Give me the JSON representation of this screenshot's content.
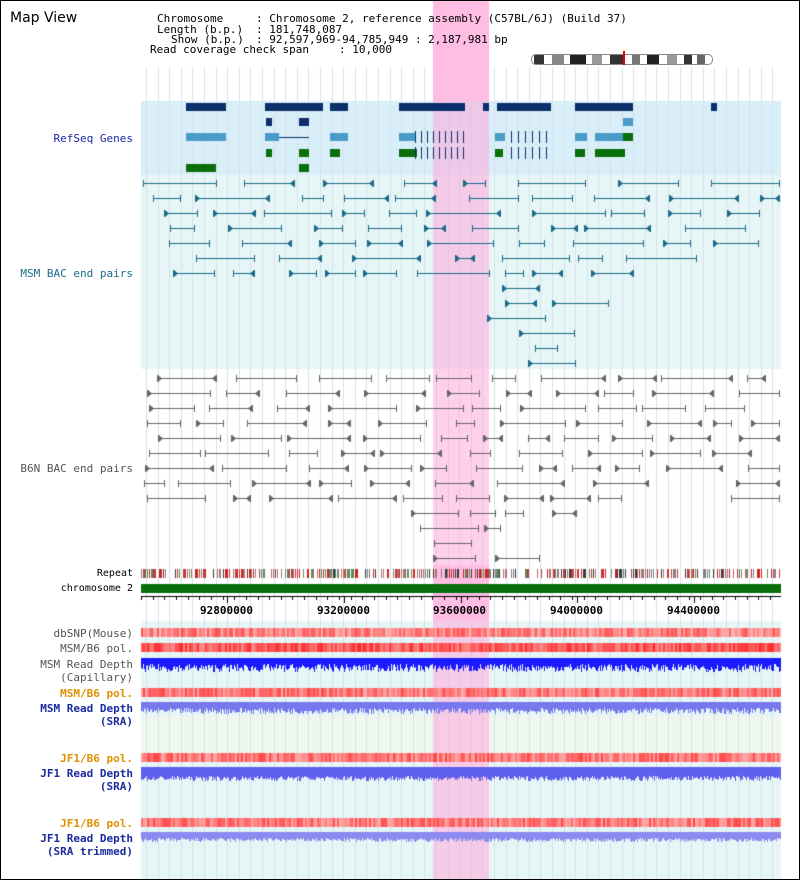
{
  "app_title": "Map View",
  "header": {
    "chromosome_label": "Chromosome",
    "chromosome_value": ": Chromosome 2, reference assembly (C57BL/6J) (Build 37)",
    "length_label": "Length (b.p.)",
    "length_value": ": 181,748,087",
    "show_label": "Show (b.p.)",
    "show_value": ": 92,597,969-94,785,949 : 2,187,981 bp",
    "coverage_label": "Read coverage check span",
    "coverage_value": ": 10,000"
  },
  "tracks": {
    "refseq": "RefSeq Genes",
    "msm_bac": "MSM BAC end pairs",
    "b6n_bac": "B6N BAC end pairs",
    "repeat": "Repeat",
    "chromosome": "chromosome 2",
    "dbsnp": "dbSNP(Mouse)",
    "msm_b6_pol_1": "MSM/B6 pol.",
    "msm_read_depth_cap_1": "MSM Read Depth",
    "msm_read_depth_cap_2": "(Capillary)",
    "msm_b6_pol_2": "MSM/B6 pol.",
    "msm_read_depth_sra_1": "MSM Read Depth",
    "msm_read_depth_sra_2": "(SRA)",
    "jf1_b6_pol_1": "JF1/B6 pol.",
    "jf1_read_depth_sra_1": "JF1 Read Depth",
    "jf1_read_depth_sra_2": "(SRA)",
    "jf1_b6_pol_2": "JF1/B6 pol.",
    "jf1_read_depth_trim_1": "JF1 Read Depth",
    "jf1_read_depth_trim_2": "(SRA trimmed)"
  },
  "axis": {
    "ticks": [
      "92800000",
      "93200000",
      "93600000",
      "94000000",
      "94400000"
    ]
  },
  "colors": {
    "refseq_dark": "#0a2f6b",
    "refseq_light": "#4a9cc8",
    "refseq_green": "#0a6e0a",
    "msm_line": "#1a6a8a",
    "b6n_line": "#666666",
    "chromosome": "#0a6e0a",
    "highlight": "#ffaadc",
    "depth_blue": "#1a1aff",
    "depth_violet": "#7777ee",
    "label_blue": "#1a2aa0",
    "label_teal": "#1a6a8a",
    "label_orange": "#e09000"
  }
}
